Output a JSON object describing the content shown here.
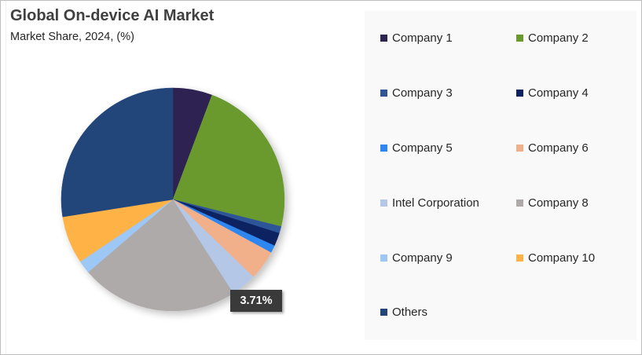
{
  "header": {
    "title": "Global On-device AI Market",
    "subtitle": "Market Share, 2024, (%)"
  },
  "highlight_label": "3.71%",
  "legend": {
    "items": [
      {
        "label": "Company 1",
        "color": "#2e2452"
      },
      {
        "label": "Company 2",
        "color": "#6a9a2e"
      },
      {
        "label": "Company 3",
        "color": "#2f5597"
      },
      {
        "label": "Company 4",
        "color": "#0b2160"
      },
      {
        "label": "Company 5",
        "color": "#2f86f0"
      },
      {
        "label": "Company 6",
        "color": "#f2b08a"
      },
      {
        "label": "Intel Corporation",
        "color": "#b4c7e7"
      },
      {
        "label": "Company 8",
        "color": "#aeaaaa"
      },
      {
        "label": "Company 9",
        "color": "#9dc8f5"
      },
      {
        "label": "Company 10",
        "color": "#ffb347"
      },
      {
        "label": "Others",
        "color": "#24457a"
      }
    ]
  },
  "chart_data": {
    "type": "pie",
    "title": "Global On-device AI Market",
    "subtitle": "Market Share, 2024, (%)",
    "categories": [
      "Company 1",
      "Company 2",
      "Company 3",
      "Company 4",
      "Company 5",
      "Company 6",
      "Intel Corporation",
      "Company 8",
      "Company 9",
      "Company 10",
      "Others"
    ],
    "values": [
      5.7,
      23.2,
      1.0,
      1.9,
      1.1,
      4.3,
      3.71,
      22.8,
      1.9,
      6.9,
      27.49
    ],
    "colors": [
      "#2e2452",
      "#6a9a2e",
      "#2f5597",
      "#0b2160",
      "#2f86f0",
      "#f2b08a",
      "#b4c7e7",
      "#aeaaaa",
      "#9dc8f5",
      "#ffb347",
      "#24457a"
    ],
    "data_labels": [
      {
        "category": "Intel Corporation",
        "text": "3.71%"
      }
    ],
    "start_angle_deg": 0,
    "direction": "clockwise",
    "legend_position": "right"
  }
}
